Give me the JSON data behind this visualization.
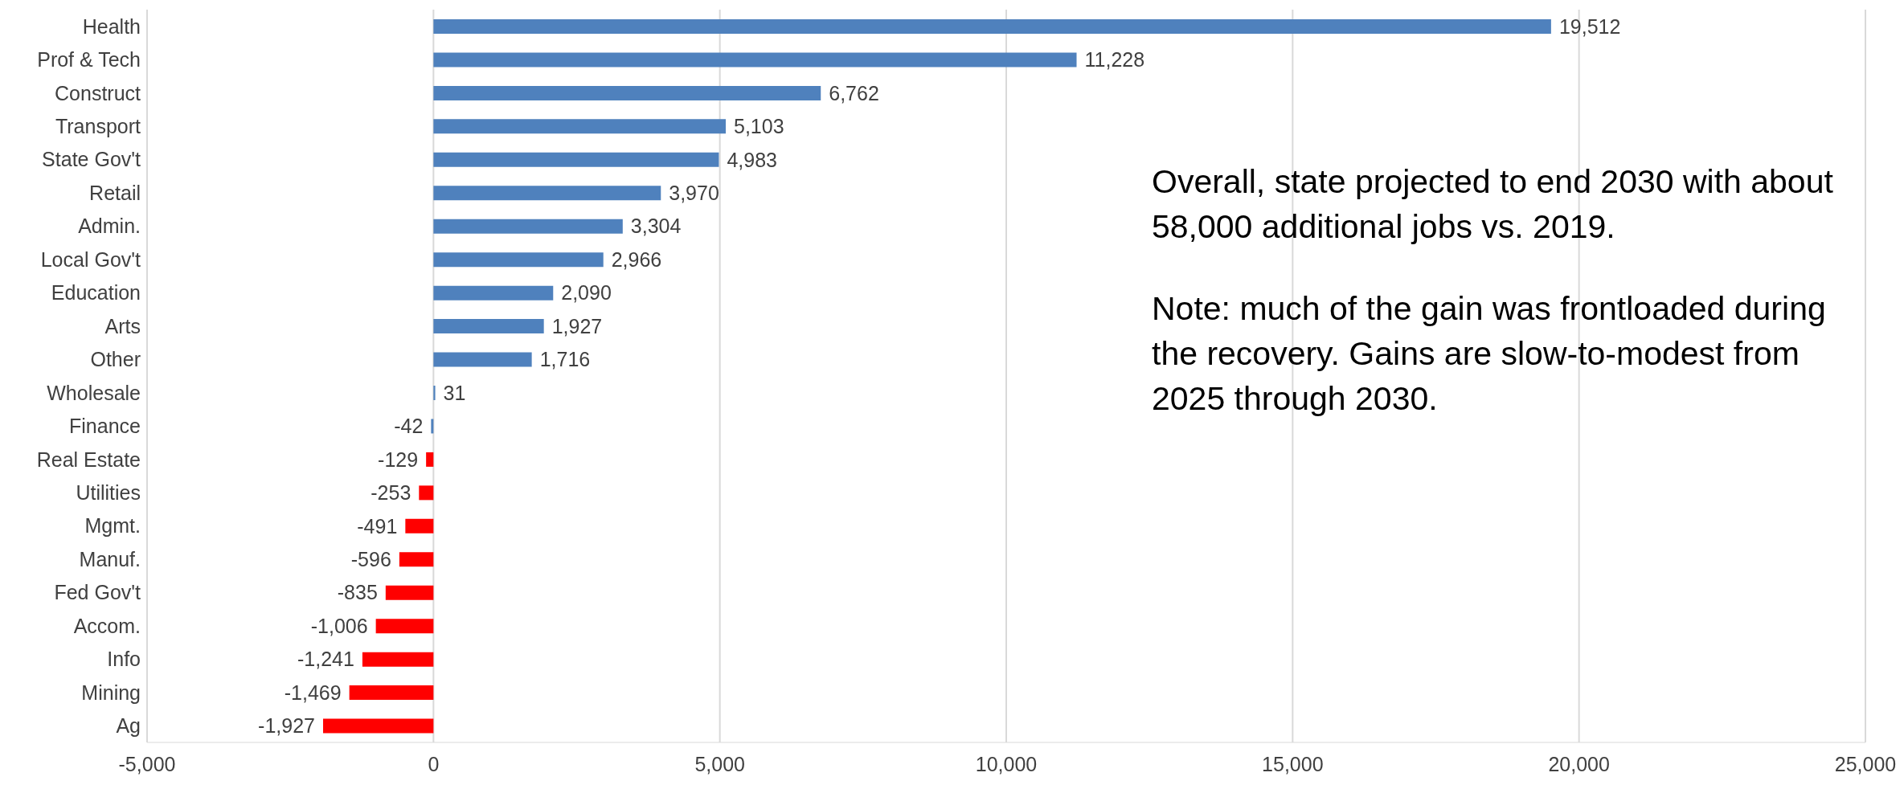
{
  "chart_data": {
    "type": "bar",
    "orientation": "horizontal",
    "categories": [
      "Health",
      "Prof & Tech",
      "Construct",
      "Transport",
      "State Gov't",
      "Retail",
      "Admin.",
      "Local Gov't",
      "Education",
      "Arts",
      "Other",
      "Wholesale",
      "Finance",
      "Real Estate",
      "Utilities",
      "Mgmt.",
      "Manuf.",
      "Fed Gov't",
      "Accom.",
      "Info",
      "Mining",
      "Ag"
    ],
    "values": [
      19512,
      11228,
      6762,
      5103,
      4983,
      3970,
      3304,
      2966,
      2090,
      1927,
      1716,
      31,
      -42,
      -129,
      -253,
      -491,
      -596,
      -835,
      -1006,
      -1241,
      -1469,
      -1927
    ],
    "colors": [
      "#4f81bd",
      "#4f81bd",
      "#4f81bd",
      "#4f81bd",
      "#4f81bd",
      "#4f81bd",
      "#4f81bd",
      "#4f81bd",
      "#4f81bd",
      "#4f81bd",
      "#4f81bd",
      "#4f81bd",
      "#4f81bd",
      "#ff0000",
      "#ff0000",
      "#ff0000",
      "#ff0000",
      "#ff0000",
      "#ff0000",
      "#ff0000",
      "#ff0000",
      "#ff0000"
    ],
    "xlim": [
      -5000,
      25000
    ],
    "xticks": [
      {
        "value": -5000,
        "label": "-5,000"
      },
      0,
      {
        "value": 5000,
        "label": "5,000"
      },
      {
        "value": 10000,
        "label": "10,000"
      },
      {
        "value": 15000,
        "label": "15,000"
      },
      {
        "value": 20000,
        "label": "20,000"
      },
      {
        "value": 25000,
        "label": "25,000"
      }
    ],
    "grid": "x",
    "value_labels": [
      "19,512",
      "11,228",
      "6,762",
      "5,103",
      "4,983",
      "3,970",
      "3,304",
      "2,966",
      "2,090",
      "1,927",
      "1,716",
      "31",
      "-42",
      "-129",
      "-253",
      "-491",
      "-596",
      "-835",
      "-1,006",
      "-1,241",
      "-1,469",
      "-1,927"
    ],
    "annotations": [
      "Overall, state projected to end 2030 with about 58,000 additional jobs vs. 2019.",
      "Note: much of the gain was frontloaded during the recovery. Gains are slow-to-modest from 2025 through 2030."
    ]
  }
}
